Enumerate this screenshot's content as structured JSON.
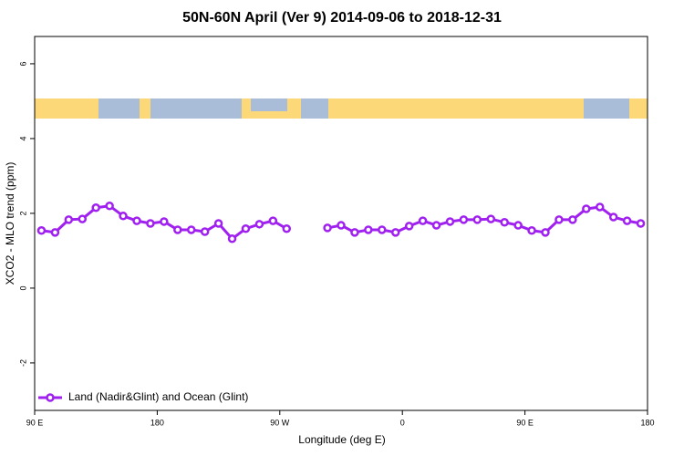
{
  "chart_data": {
    "type": "line",
    "title": "50N-60N April (Ver 9)   2014-09-06 to 2018-12-31",
    "x_label": "Longitude (deg E)",
    "y_label": "XCO2 - MLO trend (ppm)",
    "x": [
      95,
      105,
      115,
      125,
      135,
      145,
      155,
      165,
      175,
      185,
      195,
      205,
      215,
      225,
      235,
      245,
      255,
      265,
      275,
      285,
      295,
      305,
      315,
      325,
      335,
      345,
      355,
      365,
      375,
      385,
      395,
      405,
      415,
      425,
      435,
      445,
      455,
      465,
      475,
      485,
      495,
      505,
      515,
      525,
      535
    ],
    "series": [
      {
        "name": "Land (Nadir&Glint) and Ocean (Glint)",
        "color": "#a020f0",
        "values": [
          1.54,
          1.49,
          1.83,
          1.85,
          2.15,
          2.2,
          1.93,
          1.8,
          1.73,
          1.78,
          1.56,
          1.56,
          1.51,
          1.73,
          1.32,
          1.59,
          1.71,
          1.8,
          1.59,
          null,
          null,
          1.61,
          1.68,
          1.49,
          1.56,
          1.56,
          1.49,
          1.66,
          1.8,
          1.68,
          1.78,
          1.83,
          1.83,
          1.85,
          1.76,
          1.68,
          1.54,
          1.49,
          1.83,
          1.83,
          2.12,
          2.17,
          1.9,
          1.8,
          1.73
        ]
      }
    ],
    "xlim": [
      90,
      540
    ],
    "xticks": [
      {
        "value": 90,
        "label": "90 E"
      },
      180,
      {
        "value": 270,
        "label": "90 W"
      },
      {
        "value": 360,
        "label": "0"
      },
      {
        "value": 450,
        "label": "90 E"
      },
      {
        "value": 540,
        "label": "180"
      }
    ],
    "ylim": [
      -3.27,
      6.73
    ],
    "yticks": [
      -2,
      0,
      2,
      4,
      6
    ],
    "legend": "bottom-left",
    "grid": false
  }
}
